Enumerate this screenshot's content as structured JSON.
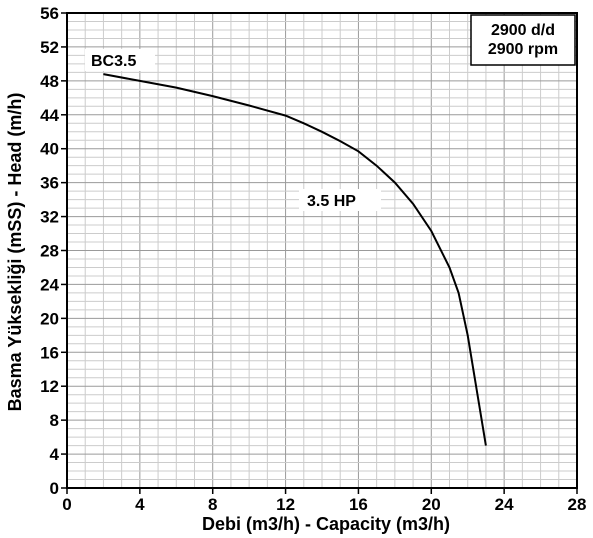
{
  "chart_data": {
    "type": "line",
    "xlabel": "Debi (m3/h) - Capacity (m3/h)",
    "ylabel": "Basma Yüksekliği (mSS) - Head (m/h)",
    "xlim": [
      0,
      28
    ],
    "ylim": [
      0,
      56
    ],
    "x_ticks": [
      0,
      4,
      8,
      12,
      16,
      20,
      24,
      28
    ],
    "y_ticks": [
      0,
      4,
      8,
      12,
      16,
      20,
      24,
      28,
      32,
      36,
      40,
      44,
      48,
      52,
      56
    ],
    "x_tick_labels": [
      "0",
      "4",
      "8",
      "12",
      "16",
      "20",
      "24",
      "28"
    ],
    "y_tick_labels": [
      "0",
      "4",
      "8",
      "12",
      "16",
      "20",
      "24",
      "28",
      "32",
      "36",
      "40",
      "44",
      "48",
      "52",
      "56"
    ],
    "grid": true,
    "series": [
      {
        "name": "BC3.5",
        "x": [
          2,
          4,
          6,
          8,
          10,
          12,
          13,
          14,
          15,
          16,
          17,
          18,
          19,
          20,
          21,
          21.5,
          22,
          22.5,
          23
        ],
        "y": [
          48.8,
          48.0,
          47.2,
          46.2,
          45.1,
          43.9,
          43.0,
          42.0,
          40.9,
          39.7,
          38.0,
          36.0,
          33.5,
          30.3,
          26.0,
          23.0,
          18.0,
          11.5,
          5.0
        ],
        "color": "#000000"
      }
    ],
    "annotations": {
      "series_label": "BC3.5",
      "power_label": "3.5 HP",
      "speed_line1": "2900 d/d",
      "speed_line2": "2900 rpm"
    }
  }
}
